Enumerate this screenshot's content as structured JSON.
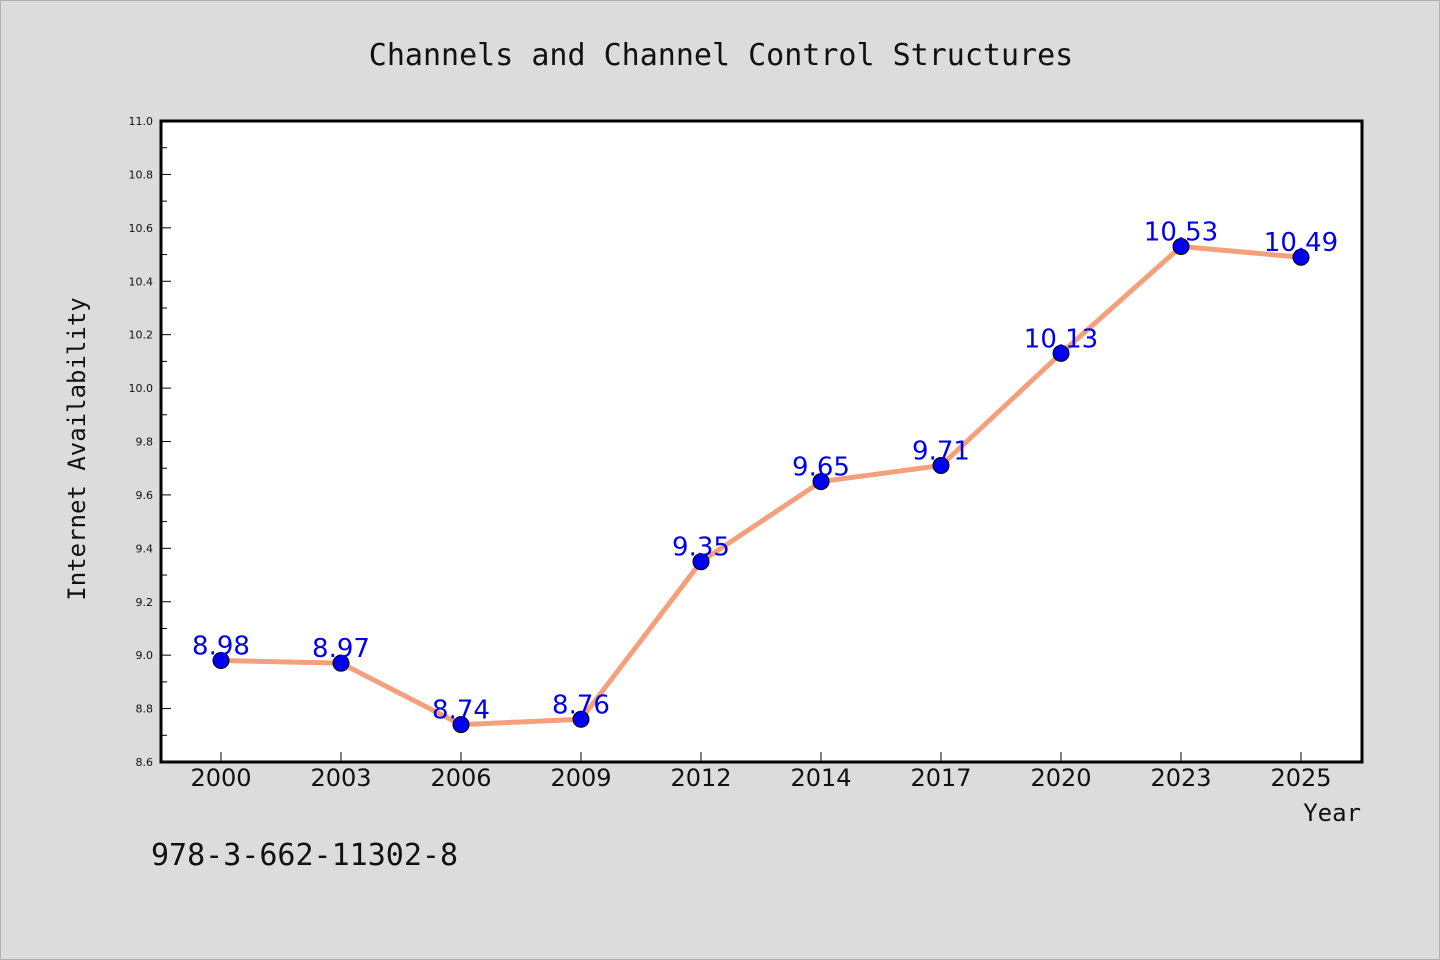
{
  "chart_data": {
    "type": "line",
    "title": "Channels and Channel Control Structures",
    "xlabel": "Year",
    "ylabel": "Internet Availability",
    "categories": [
      "2000",
      "2003",
      "2006",
      "2009",
      "2012",
      "2014",
      "2017",
      "2020",
      "2023",
      "2025"
    ],
    "series": [
      {
        "values": [
          8.98,
          8.97,
          8.74,
          8.76,
          9.35,
          9.65,
          9.71,
          10.13,
          10.53,
          10.49
        ]
      }
    ],
    "data_labels": [
      "8.98",
      "8.97",
      "8.74",
      "8.76",
      "9.35",
      "9.65",
      "9.71",
      "10.13",
      "10.53",
      "10.49"
    ],
    "ylim": [
      8.6,
      11.0
    ],
    "y_ticks": [
      "8.6",
      "8.8",
      "9.0",
      "9.2",
      "9.4",
      "9.6",
      "9.8",
      "10.0",
      "10.2",
      "10.4",
      "10.6",
      "10.8",
      "11.0"
    ],
    "grid": false,
    "legend": "none",
    "line_color": "#f4a07c",
    "marker_color": "#0000ee",
    "label_color": "#0000ee"
  },
  "footer": {
    "isbn": "978-3-662-11302-8"
  }
}
